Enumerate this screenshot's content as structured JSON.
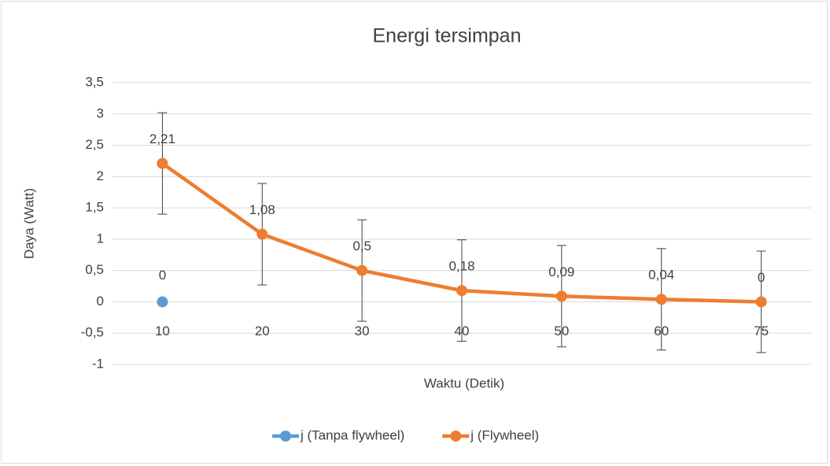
{
  "chart_data": {
    "type": "line",
    "title": "Energi tersimpan",
    "x_label": "Waktu (Detik)",
    "y_label": "Daya (Watt)",
    "categories": [
      "10",
      "20",
      "30",
      "40",
      "50",
      "60",
      "75"
    ],
    "series": [
      {
        "name": "j (Tanpa flywheel)",
        "color": "#5b9bd5",
        "values": [
          0,
          null,
          null,
          null,
          null,
          null,
          null
        ]
      },
      {
        "name": "j (Flywheel)",
        "color": "#ed7d31",
        "values": [
          2.21,
          1.08,
          0.5,
          0.18,
          0.09,
          0.04,
          0
        ],
        "value_labels": [
          "2,21",
          "1,08",
          "0,5",
          "0,18",
          "0,09",
          "0,04",
          "0"
        ],
        "errors": [
          0.81,
          0.81,
          0.81,
          0.81,
          0.81,
          0.81,
          0.81
        ]
      }
    ],
    "ylim": [
      -1,
      3.5
    ],
    "yticks": [
      -1,
      {
        "value": -0.5,
        "label": "-0,5"
      },
      0,
      {
        "value": 0.5,
        "label": "0,5"
      },
      1,
      {
        "value": 1.5,
        "label": "1,5"
      },
      2,
      {
        "value": 2.5,
        "label": "2,5"
      },
      3,
      {
        "value": 3.5,
        "label": "3,5"
      }
    ],
    "grid": true,
    "legend": "bottom"
  }
}
